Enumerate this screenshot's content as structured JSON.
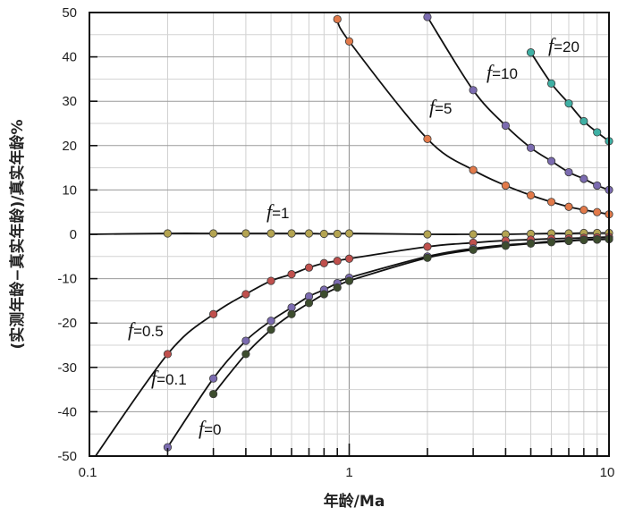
{
  "chart_data": {
    "type": "line",
    "xlabel": "年龄/Ma",
    "ylabel": "(实测年龄−真实年龄)/真实年龄%",
    "xscale": "log",
    "xlim": [
      0.1,
      10
    ],
    "ylim": [
      -50,
      50
    ],
    "grid": true,
    "x_ticks": [
      "0.1",
      "1",
      "10"
    ],
    "y_ticks": [
      "-50",
      "-40",
      "-30",
      "-20",
      "-10",
      "0",
      "10",
      "20",
      "30",
      "40",
      "50"
    ],
    "series": [
      {
        "name": "f=20",
        "label_parts": [
          "f",
          "=20"
        ],
        "color": "#3fb0a4",
        "x": [
          5,
          6,
          7,
          8,
          9,
          10
        ],
        "y": [
          41,
          34,
          29.5,
          25.5,
          23,
          21
        ]
      },
      {
        "name": "f=10",
        "label_parts": [
          "f",
          "=10"
        ],
        "color": "#7b6bb0",
        "x": [
          2,
          3,
          4,
          5,
          6,
          7,
          8,
          9,
          10
        ],
        "y": [
          49,
          32.5,
          24.5,
          19.5,
          16.5,
          14,
          12.5,
          11,
          10
        ]
      },
      {
        "name": "f=5",
        "label_parts": [
          "f",
          "=5"
        ],
        "color": "#e27a4a",
        "x": [
          0.9,
          1,
          2,
          3,
          4,
          5,
          6,
          7,
          8,
          9,
          10
        ],
        "y": [
          48.5,
          43.5,
          21.5,
          14.5,
          11,
          8.8,
          7.3,
          6.2,
          5.5,
          5,
          4.5
        ]
      },
      {
        "name": "f=1",
        "label_parts": [
          "f",
          "=1"
        ],
        "color": "#b4a451",
        "x": [
          0.1,
          0.2,
          0.3,
          0.4,
          0.5,
          0.6,
          0.7,
          0.8,
          0.9,
          1,
          2,
          3,
          4,
          5,
          6,
          7,
          8,
          9,
          10
        ],
        "y": [
          0,
          0.2,
          0.2,
          0.2,
          0.2,
          0.2,
          0.2,
          0.1,
          0.1,
          0.2,
          0,
          0,
          0,
          0.1,
          0.2,
          0.2,
          0.3,
          0.3,
          0.3
        ]
      },
      {
        "name": "f=0.5",
        "label_parts": [
          "f",
          "=0.5"
        ],
        "color": "#c0504d",
        "x": [
          0.1,
          0.2,
          0.3,
          0.4,
          0.5,
          0.6,
          0.7,
          0.8,
          0.9,
          1,
          2,
          3,
          4,
          5,
          6,
          7,
          8,
          9,
          10
        ],
        "y": [
          -52,
          -27,
          -18,
          -13.5,
          -10.5,
          -9,
          -7.5,
          -6.5,
          -6,
          -5.5,
          -2.8,
          -1.9,
          -1.4,
          -1.2,
          -1,
          -0.9,
          -0.8,
          -0.7,
          -0.6
        ]
      },
      {
        "name": "f=0.1",
        "label_parts": [
          "f",
          "=0.1"
        ],
        "color": "#7b6bb0",
        "x": [
          0.2,
          0.3,
          0.4,
          0.5,
          0.6,
          0.7,
          0.8,
          0.9,
          1,
          2,
          3,
          4,
          5,
          6,
          7,
          8,
          9,
          10
        ],
        "y": [
          -48,
          -32.5,
          -24,
          -19.5,
          -16.5,
          -14,
          -12.5,
          -11,
          -9.8,
          -5,
          -3.2,
          -2.4,
          -2,
          -1.6,
          -1.4,
          -1.2,
          -1.1,
          -1
        ]
      },
      {
        "name": "f=0",
        "label_parts": [
          "f",
          "=0"
        ],
        "color": "#3d4d2e",
        "x": [
          0.3,
          0.4,
          0.5,
          0.6,
          0.7,
          0.8,
          0.9,
          1,
          2,
          3,
          4,
          5,
          6,
          7,
          8,
          9,
          10
        ],
        "y": [
          -36,
          -27,
          -21.5,
          -18,
          -15.5,
          -13.5,
          -12,
          -10.5,
          -5.3,
          -3.5,
          -2.6,
          -2.1,
          -1.8,
          -1.5,
          -1.3,
          -1.2,
          -1.1
        ]
      }
    ]
  }
}
